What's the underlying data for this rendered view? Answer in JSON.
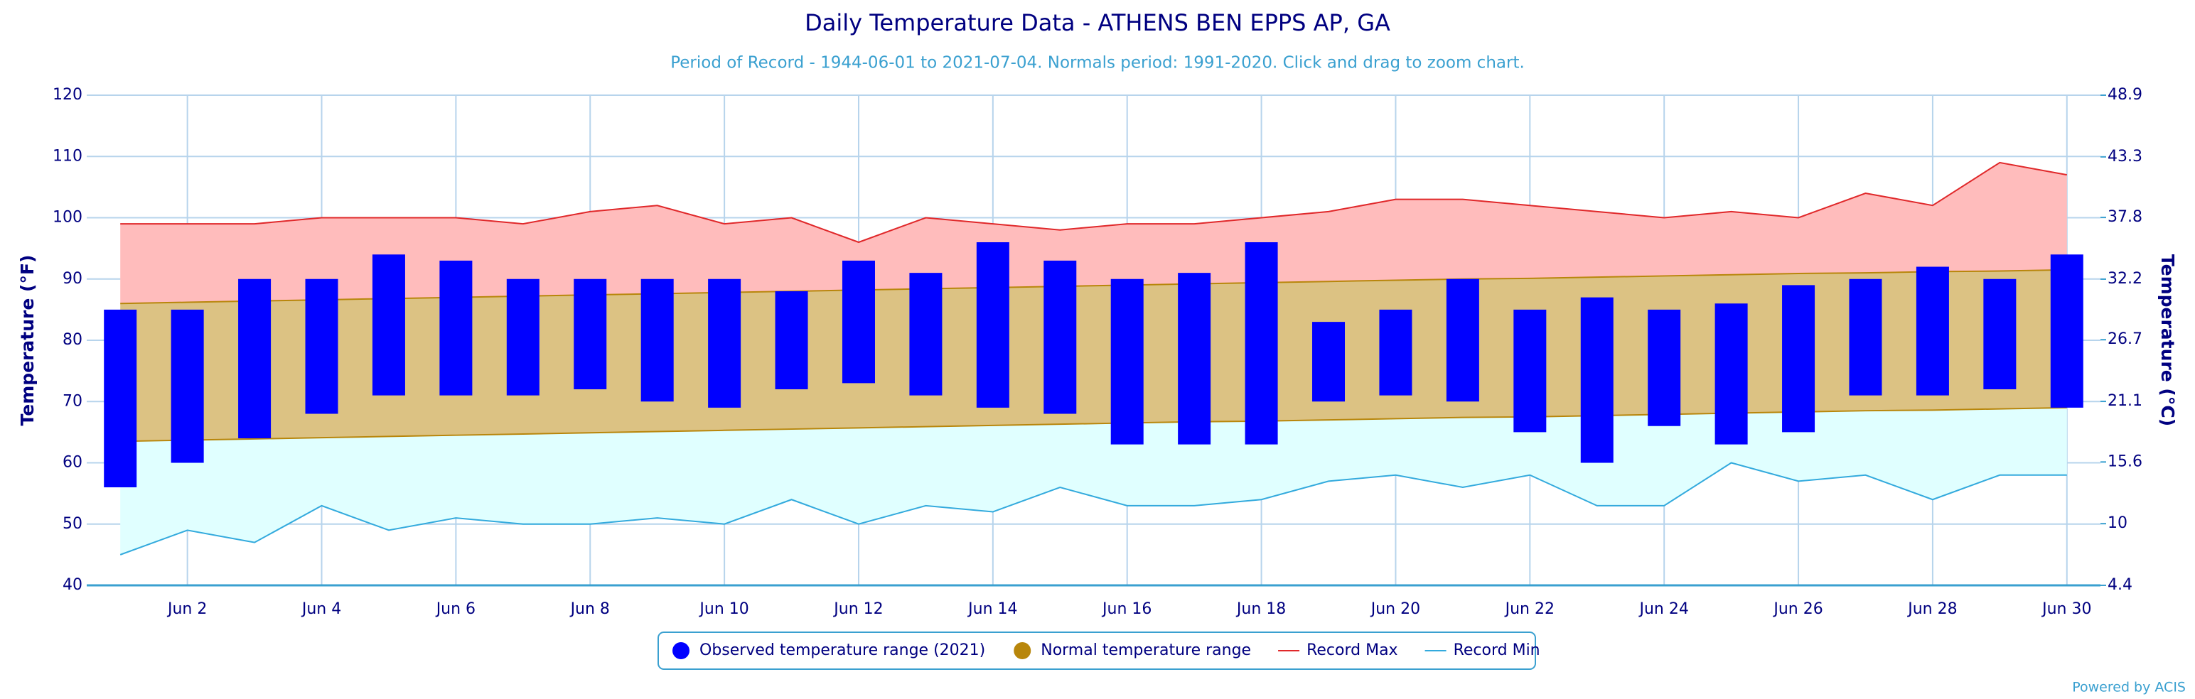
{
  "chart_data": {
    "type": "bar",
    "title": "Daily Temperature Data - ATHENS BEN EPPS AP, GA",
    "subtitle": "Period of Record - 1944-06-01 to 2021-07-04. Normals period: 1991-2020. Click and drag to zoom chart.",
    "y_label": "Temperature (°F)",
    "y2_label": "Temperature (°C)",
    "credit": "Powered by ACIS",
    "categories": [
      null,
      "Jun 2",
      null,
      "Jun 4",
      null,
      "Jun 6",
      null,
      "Jun 8",
      null,
      "Jun 10",
      null,
      "Jun 12",
      null,
      "Jun 14",
      null,
      "Jun 16",
      null,
      "Jun 18",
      null,
      "Jun 20",
      null,
      "Jun 22",
      null,
      "Jun 24",
      null,
      "Jun 26",
      null,
      "Jun 28",
      null,
      "Jun 30"
    ],
    "series": [
      {
        "name": "Observed temperature range (2021)",
        "color": "#0000ff",
        "low": [
          56,
          60,
          64,
          68,
          71,
          71,
          71,
          72,
          70,
          69,
          72,
          73,
          71,
          69,
          68,
          63,
          63,
          63,
          70,
          71,
          70,
          65,
          60,
          66,
          63,
          65,
          71,
          71,
          72,
          69
        ],
        "high": [
          85,
          85,
          90,
          90,
          94,
          93,
          90,
          90,
          90,
          90,
          88,
          93,
          91,
          96,
          93,
          90,
          91,
          96,
          83,
          85,
          90,
          85,
          87,
          85,
          86,
          89,
          90,
          92,
          90,
          94
        ]
      },
      {
        "name": "Normal temperature range",
        "color": "#b8860b",
        "low": [
          63.5,
          63.7,
          63.9,
          64.1,
          64.3,
          64.5,
          64.7,
          64.9,
          65.1,
          65.3,
          65.5,
          65.7,
          65.9,
          66.1,
          66.3,
          66.5,
          66.7,
          66.8,
          67,
          67.2,
          67.4,
          67.5,
          67.7,
          67.9,
          68.1,
          68.3,
          68.5,
          68.6,
          68.8,
          69
        ],
        "high": [
          86,
          86.2,
          86.4,
          86.6,
          86.8,
          87,
          87.2,
          87.4,
          87.6,
          87.8,
          88,
          88.2,
          88.4,
          88.6,
          88.8,
          89,
          89.2,
          89.4,
          89.6,
          89.8,
          90,
          90.1,
          90.3,
          90.5,
          90.7,
          90.9,
          91,
          91.2,
          91.3,
          91.5
        ]
      },
      {
        "name": "Record Max",
        "color": "#e0282a",
        "values": [
          99,
          99,
          99,
          100,
          100,
          100,
          99,
          101,
          102,
          99,
          100,
          96,
          100,
          99,
          98,
          99,
          99,
          100,
          101,
          103,
          103,
          102,
          101,
          100,
          101,
          100,
          104,
          102,
          109,
          107
        ]
      },
      {
        "name": "Record Min",
        "color": "#33aadd",
        "values": [
          45,
          49,
          47,
          53,
          49,
          51,
          50,
          50,
          51,
          50,
          54,
          50,
          53,
          52,
          56,
          53,
          53,
          54,
          57,
          58,
          56,
          58,
          53,
          53,
          60,
          57,
          58,
          54,
          58,
          58
        ]
      }
    ],
    "ylim": [
      40,
      120
    ],
    "yticks": [
      40,
      50,
      60,
      70,
      80,
      90,
      100,
      110,
      120
    ],
    "y2lim": [
      4.4,
      48.9
    ],
    "y2ticks": [
      4.4,
      10,
      15.6,
      21.1,
      26.7,
      32.2,
      37.8,
      43.3,
      48.9
    ],
    "grid": true
  }
}
